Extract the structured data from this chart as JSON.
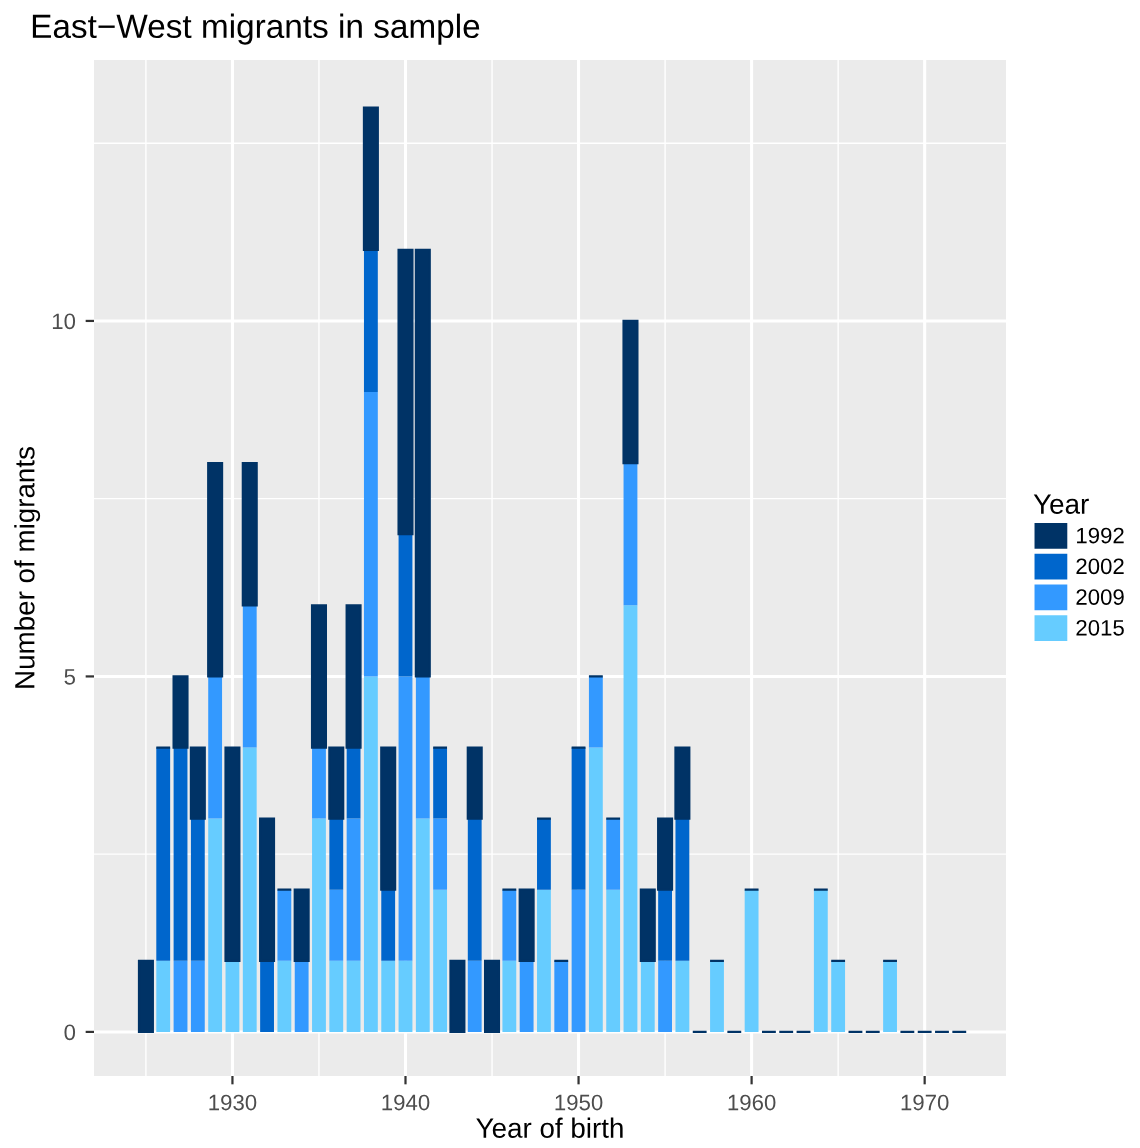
{
  "chart_data": {
    "type": "bar",
    "stacked": true,
    "title": "East−West migrants in sample",
    "xlabel": "Year of birth",
    "ylabel": "Number of migrants",
    "legend_title": "Year",
    "legend": "right",
    "grid": true,
    "x": [
      1925,
      1926,
      1927,
      1928,
      1929,
      1930,
      1931,
      1932,
      1933,
      1934,
      1935,
      1936,
      1937,
      1938,
      1939,
      1940,
      1941,
      1942,
      1943,
      1944,
      1945,
      1946,
      1947,
      1948,
      1949,
      1950,
      1951,
      1952,
      1953,
      1954,
      1955,
      1956,
      1957,
      1958,
      1959,
      1960,
      1961,
      1962,
      1963,
      1964,
      1965,
      1966,
      1967,
      1968,
      1969,
      1970,
      1971,
      1972
    ],
    "series": [
      {
        "name": "2015",
        "color": "#66ccff",
        "values": [
          0,
          1,
          0,
          0,
          3,
          1,
          4,
          0,
          1,
          0,
          3,
          1,
          1,
          5,
          1,
          1,
          3,
          2,
          0,
          0,
          0,
          1,
          0,
          2,
          0,
          0,
          4,
          2,
          6,
          1,
          0,
          1,
          0,
          1,
          0,
          2,
          0,
          0,
          0,
          2,
          1,
          0,
          0,
          1,
          0,
          0,
          0,
          0
        ]
      },
      {
        "name": "2009",
        "color": "#3399ff",
        "values": [
          0,
          0,
          1,
          1,
          2,
          0,
          2,
          0,
          1,
          1,
          1,
          1,
          2,
          4,
          0,
          4,
          2,
          1,
          0,
          1,
          0,
          1,
          1,
          0,
          1,
          2,
          1,
          1,
          2,
          0,
          1,
          0,
          0,
          0,
          0,
          0,
          0,
          0,
          0,
          0,
          0,
          0,
          0,
          0,
          0,
          0,
          0,
          0
        ]
      },
      {
        "name": "2002",
        "color": "#0066cc",
        "values": [
          0,
          3,
          3,
          2,
          0,
          0,
          0,
          1,
          0,
          0,
          0,
          1,
          1,
          2,
          1,
          2,
          0,
          1,
          0,
          2,
          0,
          0,
          0,
          1,
          0,
          2,
          0,
          0,
          0,
          0,
          1,
          2,
          0,
          0,
          0,
          0,
          0,
          0,
          0,
          0,
          0,
          0,
          0,
          0,
          0,
          0,
          0,
          0
        ]
      },
      {
        "name": "1992",
        "color": "#003366",
        "values": [
          1,
          0,
          1,
          1,
          3,
          3,
          2,
          2,
          0,
          1,
          2,
          1,
          2,
          2,
          2,
          4,
          6,
          0,
          1,
          1,
          1,
          0,
          1,
          0,
          0,
          0,
          0,
          0,
          2,
          1,
          1,
          1,
          0,
          0,
          0,
          0,
          0,
          0,
          0,
          0,
          0,
          0,
          0,
          0,
          0,
          0,
          0,
          0
        ]
      }
    ],
    "xlim": [
      1922.0,
      1974.7
    ],
    "xticks": [
      1930,
      1940,
      1950,
      1960,
      1970
    ],
    "ylim": [
      -0.62,
      13.67
    ],
    "yticks": [
      0,
      5,
      10
    ]
  }
}
